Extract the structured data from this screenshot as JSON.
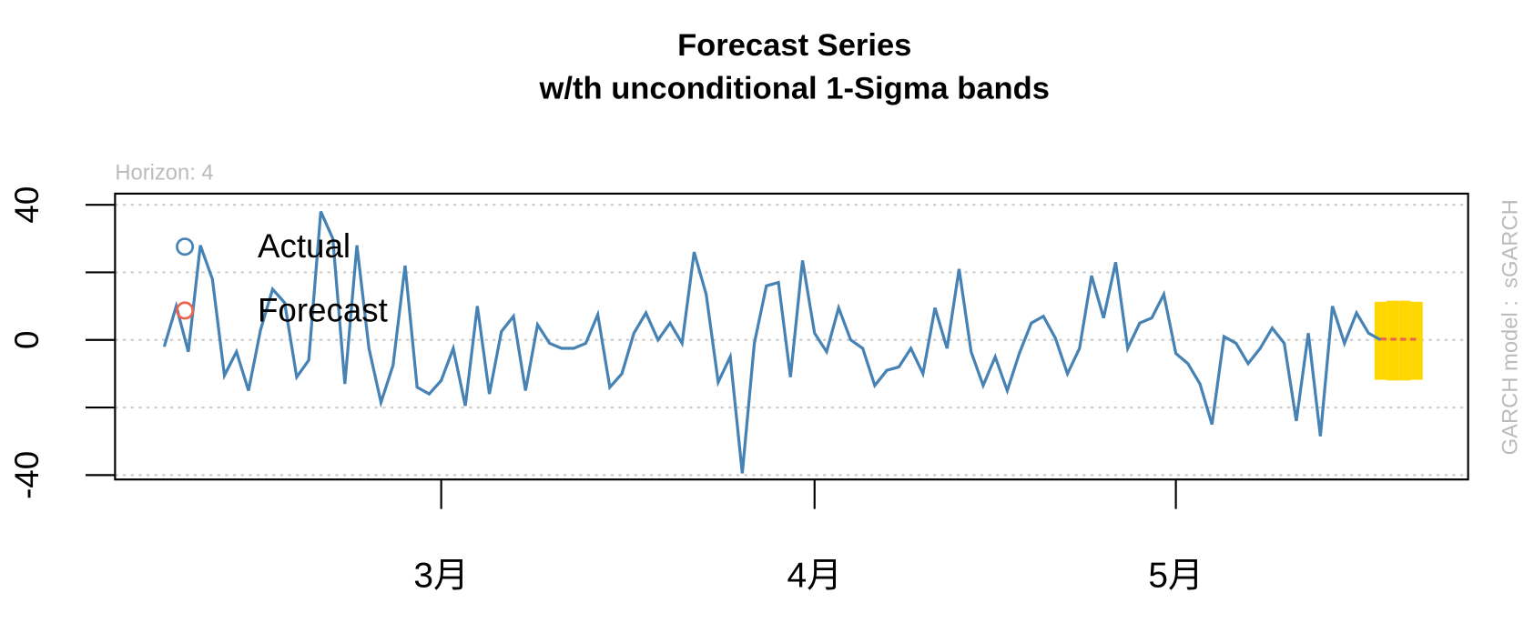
{
  "chart_data": {
    "type": "line",
    "title": "Forecast Series",
    "subtitle": "w/th unconditional 1-Sigma bands",
    "annotation": "Horizon: 4",
    "side_label": "GARCH model :  sGARCH",
    "categories": [
      null,
      null,
      null,
      null,
      null,
      null,
      null,
      null,
      null,
      null,
      null,
      null,
      null,
      null,
      null,
      null,
      null,
      null,
      null,
      null,
      null,
      null,
      null,
      "3月",
      null,
      null,
      null,
      null,
      null,
      null,
      null,
      null,
      null,
      null,
      null,
      null,
      null,
      null,
      null,
      null,
      null,
      null,
      null,
      null,
      null,
      null,
      null,
      null,
      null,
      null,
      null,
      null,
      null,
      null,
      "4月",
      null,
      null,
      null,
      null,
      null,
      null,
      null,
      null,
      null,
      null,
      null,
      null,
      null,
      null,
      null,
      null,
      null,
      null,
      null,
      null,
      null,
      null,
      null,
      null,
      null,
      null,
      null,
      null,
      null,
      "5月",
      null,
      null,
      null,
      null,
      null,
      null,
      null,
      null,
      null,
      null,
      null,
      null,
      null,
      null,
      null,
      null,
      null,
      null,
      null,
      null
    ],
    "series": [
      {
        "name": "Actual",
        "color": "#4682B4",
        "values": [
          -2,
          10,
          -3.5,
          28,
          18,
          -10.5,
          -3.5,
          -15,
          3,
          15,
          11,
          -11,
          -6,
          38,
          30,
          -13,
          28,
          -2.5,
          -18.5,
          -7.5,
          22,
          -14,
          -16,
          -12,
          -2.5,
          -19.5,
          10,
          -16,
          2.5,
          7,
          -15,
          4.5,
          -1,
          -2.5,
          -2.5,
          -1,
          7.5,
          -14,
          -10,
          2,
          8,
          0,
          5,
          -1,
          26,
          13.5,
          -12.5,
          -5,
          -39.5,
          -1,
          16,
          17,
          -11,
          23.5,
          2,
          -3.5,
          9.5,
          0,
          -2.5,
          -13.5,
          -9,
          -8,
          -2.5,
          -10,
          9.5,
          -2.5,
          21,
          -3.5,
          -13.5,
          -5,
          -15,
          -4,
          5,
          7,
          0.5,
          -10,
          -2.5,
          19,
          6.5,
          23,
          -2.5,
          5,
          6.5,
          13.5,
          -4,
          -7,
          -13,
          -25,
          1,
          -1,
          -7,
          -2.5,
          3.5,
          -1,
          -24,
          2,
          -28.5,
          10,
          -1,
          8,
          2,
          0,
          null,
          null,
          null
        ]
      },
      {
        "name": "Forecast",
        "color": "#F0624D",
        "dashed": true,
        "values": [
          null,
          null,
          null,
          null,
          null,
          null,
          null,
          null,
          null,
          null,
          null,
          null,
          null,
          null,
          null,
          null,
          null,
          null,
          null,
          null,
          null,
          null,
          null,
          null,
          null,
          null,
          null,
          null,
          null,
          null,
          null,
          null,
          null,
          null,
          null,
          null,
          null,
          null,
          null,
          null,
          null,
          null,
          null,
          null,
          null,
          null,
          null,
          null,
          null,
          null,
          null,
          null,
          null,
          null,
          null,
          null,
          null,
          null,
          null,
          null,
          null,
          null,
          null,
          null,
          null,
          null,
          null,
          null,
          null,
          null,
          null,
          null,
          null,
          null,
          null,
          null,
          null,
          null,
          null,
          null,
          null,
          null,
          null,
          null,
          null,
          null,
          null,
          null,
          null,
          null,
          null,
          null,
          null,
          null,
          null,
          null,
          null,
          null,
          null,
          null,
          null,
          0.3,
          0.2,
          0.2,
          0.2
        ]
      }
    ],
    "bands": {
      "color": "#FFD700",
      "upper": [
        null,
        null,
        null,
        null,
        null,
        null,
        null,
        null,
        null,
        null,
        null,
        null,
        null,
        null,
        null,
        null,
        null,
        null,
        null,
        null,
        null,
        null,
        null,
        null,
        null,
        null,
        null,
        null,
        null,
        null,
        null,
        null,
        null,
        null,
        null,
        null,
        null,
        null,
        null,
        null,
        null,
        null,
        null,
        null,
        null,
        null,
        null,
        null,
        null,
        null,
        null,
        null,
        null,
        null,
        null,
        null,
        null,
        null,
        null,
        null,
        null,
        null,
        null,
        null,
        null,
        null,
        null,
        null,
        null,
        null,
        null,
        null,
        null,
        null,
        null,
        null,
        null,
        null,
        null,
        null,
        null,
        null,
        null,
        null,
        null,
        null,
        null,
        null,
        null,
        null,
        null,
        null,
        null,
        null,
        null,
        null,
        null,
        null,
        null,
        null,
        null,
        11.3,
        11.6,
        11.6,
        11.3
      ],
      "lower": [
        null,
        null,
        null,
        null,
        null,
        null,
        null,
        null,
        null,
        null,
        null,
        null,
        null,
        null,
        null,
        null,
        null,
        null,
        null,
        null,
        null,
        null,
        null,
        null,
        null,
        null,
        null,
        null,
        null,
        null,
        null,
        null,
        null,
        null,
        null,
        null,
        null,
        null,
        null,
        null,
        null,
        null,
        null,
        null,
        null,
        null,
        null,
        null,
        null,
        null,
        null,
        null,
        null,
        null,
        null,
        null,
        null,
        null,
        null,
        null,
        null,
        null,
        null,
        null,
        null,
        null,
        null,
        null,
        null,
        null,
        null,
        null,
        null,
        null,
        null,
        null,
        null,
        null,
        null,
        null,
        null,
        null,
        null,
        null,
        null,
        null,
        null,
        null,
        null,
        null,
        null,
        null,
        null,
        null,
        null,
        null,
        null,
        null,
        null,
        null,
        null,
        -11.8,
        -12,
        -12,
        -11.8
      ]
    },
    "ylim": [
      -41.3,
      43.3
    ],
    "yticks": [
      -40,
      0,
      40
    ],
    "ygrid": [
      -40,
      -20,
      0,
      20,
      40
    ],
    "grid": true,
    "legend": "topleft"
  }
}
